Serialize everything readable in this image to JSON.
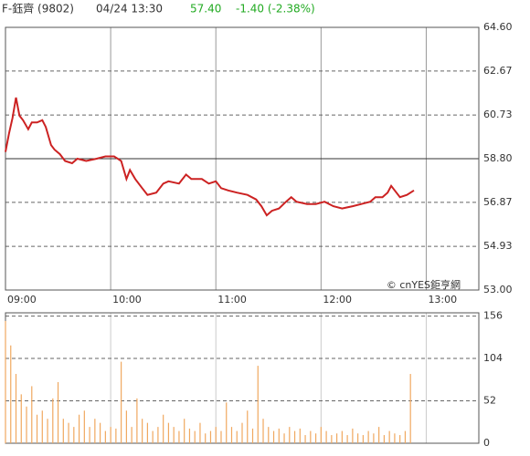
{
  "header": {
    "name": "F-鈺齊 (9802)",
    "datetime": "04/24 13:30",
    "price": "57.40",
    "change": "-1.40 (-2.38%)"
  },
  "chart_data": [
    {
      "type": "line",
      "color": "#cc2222",
      "annotation": "© cnYES鉅亨網",
      "xlim": [
        0,
        270
      ],
      "xticks": [
        {
          "value": 0,
          "label": "09:00"
        },
        {
          "value": 60,
          "label": "10:00"
        },
        {
          "value": 120,
          "label": "11:00"
        },
        {
          "value": 180,
          "label": "12:00"
        },
        {
          "value": 240,
          "label": "13:00"
        }
      ],
      "ylim": [
        53,
        64.6
      ],
      "yticks": [
        {
          "value": 64.6,
          "label": "64.60"
        },
        62.67,
        60.73,
        {
          "value": 58.8,
          "label": "58.80"
        },
        56.87,
        54.93,
        {
          "value": 53,
          "label": "53.00"
        }
      ],
      "reference_line": 58.8,
      "x": [
        0,
        2,
        4,
        6,
        8,
        10,
        13,
        15,
        18,
        21,
        23,
        26,
        28,
        31,
        34,
        38,
        41,
        46,
        52,
        57,
        62,
        66,
        69,
        71,
        74,
        78,
        81,
        86,
        90,
        93,
        99,
        103,
        106,
        112,
        116,
        120,
        123,
        127,
        132,
        138,
        143,
        146,
        149,
        152,
        156,
        160,
        163,
        166,
        172,
        177,
        182,
        187,
        192,
        198,
        203,
        208,
        211,
        215,
        218,
        220,
        223,
        225,
        229,
        233
      ],
      "values": [
        59.1,
        59.9,
        60.6,
        61.5,
        60.7,
        60.5,
        60.1,
        60.4,
        60.4,
        60.5,
        60.2,
        59.4,
        59.2,
        59.0,
        58.7,
        58.6,
        58.8,
        58.7,
        58.8,
        58.9,
        58.9,
        58.7,
        57.9,
        58.3,
        57.9,
        57.5,
        57.2,
        57.3,
        57.7,
        57.8,
        57.7,
        58.1,
        57.9,
        57.9,
        57.7,
        57.8,
        57.5,
        57.4,
        57.3,
        57.2,
        57.0,
        56.7,
        56.3,
        56.5,
        56.6,
        56.9,
        57.1,
        56.9,
        56.8,
        56.8,
        56.9,
        56.7,
        56.6,
        56.7,
        56.8,
        56.9,
        57.1,
        57.1,
        57.3,
        57.6,
        57.3,
        57.1,
        57.2,
        57.4
      ]
    },
    {
      "type": "bar",
      "color": "#f0a860",
      "xlim": [
        0,
        270
      ],
      "ylim": [
        0,
        160
      ],
      "yticks": [
        0,
        52,
        104,
        156
      ],
      "x": [
        0,
        3,
        6,
        9,
        12,
        15,
        18,
        21,
        24,
        27,
        30,
        33,
        36,
        39,
        42,
        45,
        48,
        51,
        54,
        57,
        60,
        63,
        66,
        69,
        72,
        75,
        78,
        81,
        84,
        87,
        90,
        93,
        96,
        99,
        102,
        105,
        108,
        111,
        114,
        117,
        120,
        123,
        126,
        129,
        132,
        135,
        138,
        141,
        144,
        147,
        150,
        153,
        156,
        159,
        162,
        165,
        168,
        171,
        174,
        177,
        180,
        183,
        186,
        189,
        192,
        195,
        198,
        201,
        204,
        207,
        210,
        213,
        216,
        219,
        222,
        225,
        228,
        231
      ],
      "values": [
        150,
        120,
        85,
        60,
        45,
        70,
        35,
        40,
        30,
        55,
        75,
        30,
        25,
        20,
        35,
        40,
        20,
        30,
        25,
        15,
        20,
        18,
        100,
        40,
        20,
        55,
        30,
        25,
        15,
        20,
        35,
        25,
        20,
        15,
        30,
        18,
        15,
        25,
        12,
        15,
        20,
        15,
        50,
        20,
        15,
        25,
        40,
        18,
        95,
        30,
        20,
        15,
        18,
        12,
        20,
        15,
        18,
        10,
        15,
        12,
        20,
        15,
        10,
        12,
        15,
        10,
        18,
        12,
        10,
        15,
        12,
        20,
        10,
        15,
        12,
        10,
        15,
        85
      ]
    }
  ]
}
